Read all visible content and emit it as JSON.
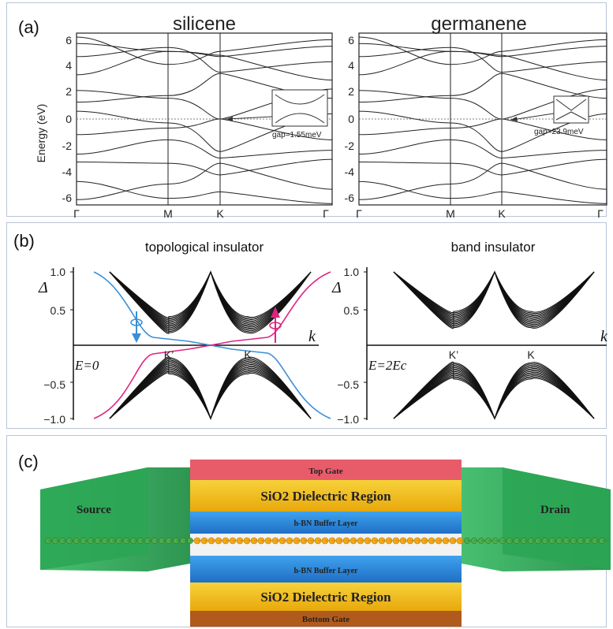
{
  "panel_a": {
    "label": "(a)",
    "ylabel": "Energy (eV)",
    "yticks": [
      "6",
      "4",
      "2",
      "0",
      "-2",
      "-4",
      "-6"
    ],
    "kpoints": [
      "Γ",
      "M",
      "K",
      "Γ"
    ],
    "plots": [
      {
        "title": "silicene",
        "gap": "gap=1.55meV"
      },
      {
        "title": "germanene",
        "gap": "gap=23.9meV"
      }
    ]
  },
  "panel_b": {
    "label": "(b)",
    "yticks": [
      "1.0",
      "0.5",
      "−0.5",
      "−1.0"
    ],
    "delta": "Δ",
    "k": "k",
    "plots": [
      {
        "title": "topological insulator",
        "kpts": [
          "K’",
          "K"
        ],
        "energy": "E=0"
      },
      {
        "title": "band insulator",
        "kpts": [
          "K’",
          "K"
        ],
        "energy": "E=2Ec"
      }
    ],
    "colors": {
      "spin_down": "#3b8fd6",
      "spin_up": "#e0237f"
    }
  },
  "panel_c": {
    "label": "(c)",
    "layers": {
      "top_gate": "Top Gate",
      "dielectric_top": "SiO2 Dielectric Region",
      "buffer_top": "h-BN Buffer Layer",
      "buffer_bottom": "h-BN Buffer Layer",
      "dielectric_bottom": "SiO2 Dielectric Region",
      "bottom_gate": "Bottom Gate"
    },
    "source": "Source",
    "drain": "Drain",
    "colors": {
      "gate_top": "#e85c6a",
      "dielectric": "#f5c116",
      "buffer": "#2f8fe0",
      "gate_bottom": "#b05a1c",
      "contact": "#2fb35a"
    }
  }
}
